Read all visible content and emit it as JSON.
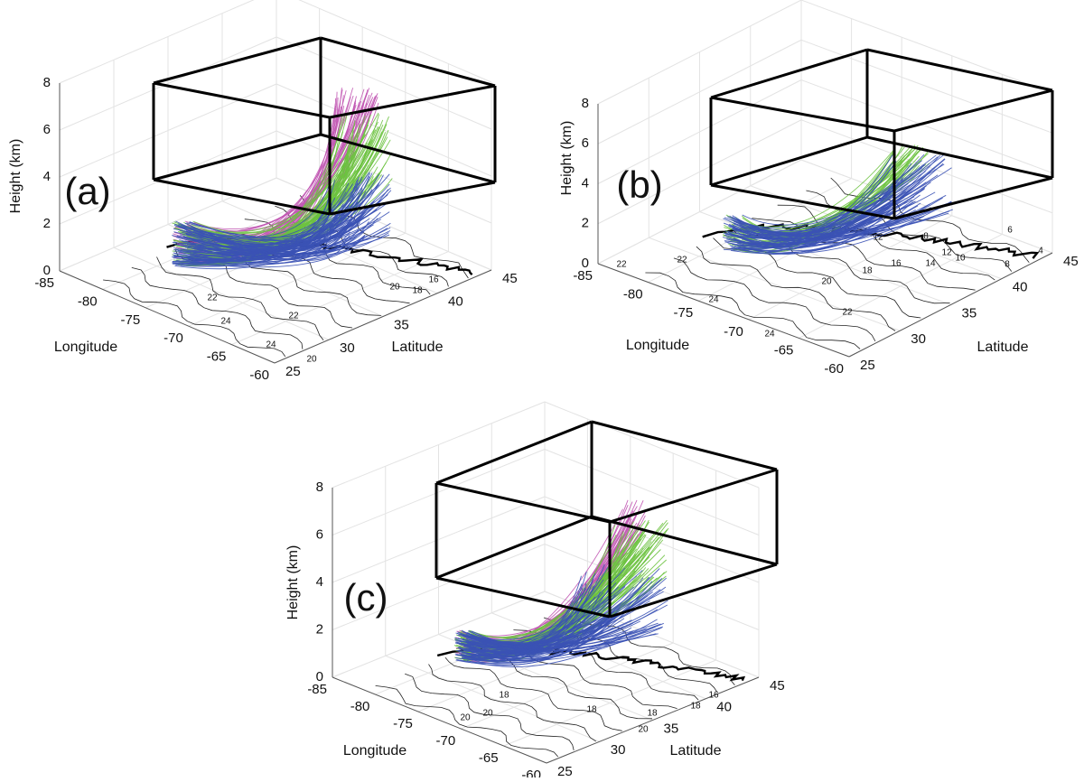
{
  "chart_data": [
    {
      "type": "trajectory3d",
      "panel_label": "(a)",
      "x_label": "Longitude",
      "y_label": "Latitude",
      "z_label": "Height (km)",
      "xlim": [
        -85,
        -60
      ],
      "xticks": [
        -85,
        -80,
        -75,
        -70,
        -65,
        -60
      ],
      "ylim": [
        25,
        45
      ],
      "yticks": [
        25,
        30,
        35,
        40,
        45
      ],
      "zlim": [
        0,
        8
      ],
      "zticks": [
        0,
        2,
        4,
        6,
        8
      ],
      "colors": [
        "#c157b3",
        "#6cc23f",
        "#3b52b5"
      ],
      "contour_labels": [
        22,
        24,
        22,
        24,
        20,
        20,
        18,
        16
      ]
    },
    {
      "type": "trajectory3d",
      "panel_label": "(b)",
      "x_label": "Longitude",
      "y_label": "Latitude",
      "z_label": "Height (km)",
      "xlim": [
        -85,
        -60
      ],
      "xticks": [
        -85,
        -80,
        -75,
        -70,
        -65,
        -60
      ],
      "ylim": [
        25,
        45
      ],
      "yticks": [
        25,
        30,
        35,
        40,
        45
      ],
      "zlim": [
        0,
        8
      ],
      "zticks": [
        0,
        2,
        4,
        6,
        8
      ],
      "colors": [
        "#6cc23f",
        "#3b52b5"
      ],
      "contour_labels": [
        22,
        22,
        24,
        24,
        22,
        20,
        18,
        16,
        14,
        12,
        10,
        8,
        6,
        4,
        12,
        8
      ]
    },
    {
      "type": "trajectory3d",
      "panel_label": "(c)",
      "x_label": "Longitude",
      "y_label": "Latitude",
      "z_label": "Height (km)",
      "xlim": [
        -85,
        -60
      ],
      "xticks": [
        -85,
        -80,
        -75,
        -70,
        -65,
        -60
      ],
      "ylim": [
        25,
        45
      ],
      "yticks": [
        25,
        30,
        35,
        40,
        45
      ],
      "zlim": [
        0,
        8
      ],
      "zticks": [
        0,
        2,
        4,
        6,
        8
      ],
      "colors": [
        "#c157b3",
        "#6cc23f",
        "#3b52b5"
      ],
      "contour_labels": [
        20,
        18,
        20,
        18,
        20,
        18,
        16,
        18
      ]
    }
  ]
}
